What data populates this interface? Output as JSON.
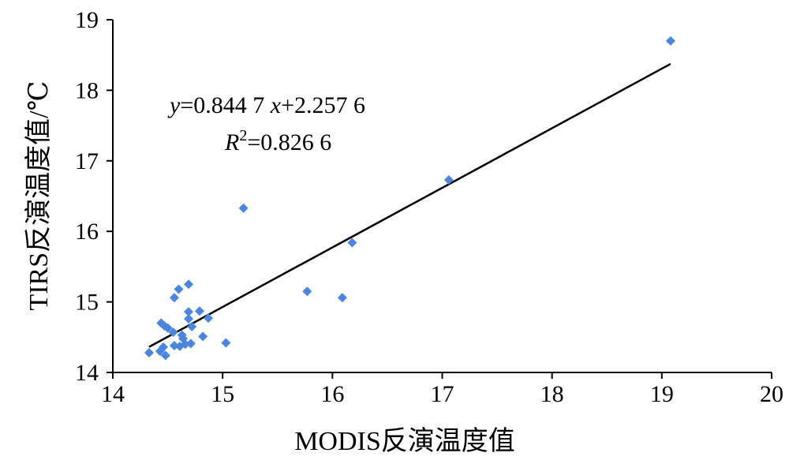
{
  "chart_data": {
    "type": "scatter",
    "xlabel": "MODIS反演温度值",
    "ylabel": "TIRS反演温度值/℃",
    "x_ticks": [
      "14",
      "15",
      "16",
      "17",
      "18",
      "19",
      "20"
    ],
    "y_ticks": [
      "14",
      "15",
      "16",
      "17",
      "18",
      "19"
    ],
    "xlim": [
      14,
      20
    ],
    "ylim": [
      14,
      19
    ],
    "grid": false,
    "marker_color": "#4a86e0",
    "marker_shape": "diamond",
    "points": [
      {
        "x": 14.33,
        "y": 14.28
      },
      {
        "x": 14.43,
        "y": 14.3
      },
      {
        "x": 14.46,
        "y": 14.36
      },
      {
        "x": 14.48,
        "y": 14.24
      },
      {
        "x": 14.44,
        "y": 14.7
      },
      {
        "x": 14.47,
        "y": 14.66
      },
      {
        "x": 14.5,
        "y": 14.63
      },
      {
        "x": 14.55,
        "y": 14.57
      },
      {
        "x": 14.56,
        "y": 14.38
      },
      {
        "x": 14.61,
        "y": 14.37
      },
      {
        "x": 14.63,
        "y": 14.53
      },
      {
        "x": 14.64,
        "y": 14.48
      },
      {
        "x": 14.66,
        "y": 14.4
      },
      {
        "x": 14.69,
        "y": 14.76
      },
      {
        "x": 14.69,
        "y": 14.86
      },
      {
        "x": 14.72,
        "y": 14.65
      },
      {
        "x": 14.71,
        "y": 14.41
      },
      {
        "x": 14.79,
        "y": 14.87
      },
      {
        "x": 14.82,
        "y": 14.51
      },
      {
        "x": 14.87,
        "y": 14.77
      },
      {
        "x": 14.56,
        "y": 15.06
      },
      {
        "x": 14.6,
        "y": 15.18
      },
      {
        "x": 14.69,
        "y": 15.25
      },
      {
        "x": 15.03,
        "y": 14.42
      },
      {
        "x": 15.19,
        "y": 16.33
      },
      {
        "x": 15.77,
        "y": 15.15
      },
      {
        "x": 16.09,
        "y": 15.06
      },
      {
        "x": 16.18,
        "y": 15.84
      },
      {
        "x": 17.06,
        "y": 16.73
      },
      {
        "x": 19.08,
        "y": 18.7
      }
    ],
    "trendline": {
      "x_range": [
        14.33,
        19.08
      ],
      "slope": 0.8447,
      "intercept": 2.2576
    },
    "annotation": {
      "equation_var_y": "y",
      "equation_part1": "=0.844 7 ",
      "equation_var_x": "x",
      "equation_part2": "+2.257 6",
      "r2_var": "R",
      "r2_sup": "2",
      "r2_value": "=0.826 6"
    }
  }
}
